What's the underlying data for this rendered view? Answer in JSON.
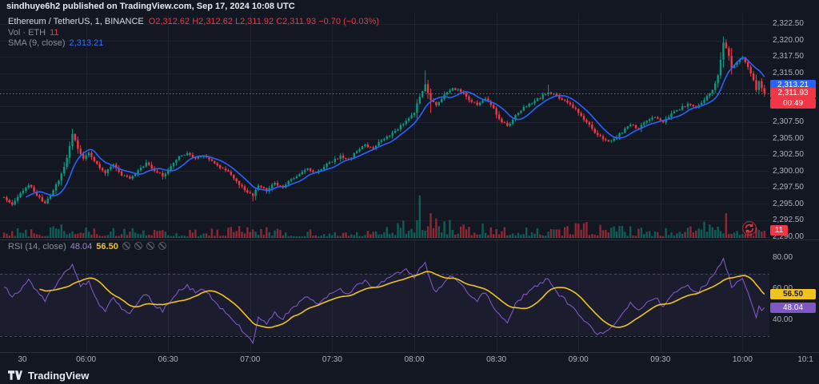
{
  "topbar": {
    "text": "sindhuye6h2 published on TradingView.com, Sep 17, 2024 10:08 UTC"
  },
  "legend": {
    "symbol": "Ethereum / TetherUS, 1, BINANCE",
    "ohlc": "O2,312.62  H2,312.62  L2,311.92  C2,311.93  −0.70 (−0.03%)",
    "vol_label": "Vol · ETH",
    "vol_value": "11",
    "sma_label": "SMA (9, close)",
    "sma_value": "2,313.21"
  },
  "rsi_legend": {
    "label": "RSI (14, close)",
    "value": "48.04",
    "ma_value": "56.50"
  },
  "badges": {
    "sma": "2,313.21",
    "last": "2,311.93",
    "countdown": "00:49",
    "volume": "11",
    "rsi_ma": "56.50",
    "rsi": "48.04"
  },
  "footer": {
    "brand": "TradingView"
  },
  "colors": {
    "background": "#131722",
    "grid": "#1e222d",
    "separator": "#2a2e39",
    "up": "#089981",
    "down": "#f23645",
    "sma": "#2962ff",
    "rsi": "#7e57c2",
    "rsi_ma": "#f0c41f",
    "axis_text": "#aeb1bb",
    "last_price_line": "#f23645"
  },
  "chart_data": {
    "type": "candlestick",
    "symbol": "Ethereum / TetherUS",
    "interval": "1",
    "exchange": "BINANCE",
    "time_range": {
      "start": "05:30",
      "end": "10:08"
    },
    "last": {
      "open": 2312.62,
      "high": 2312.62,
      "low": 2311.92,
      "close": 2311.93,
      "change": -0.7,
      "change_pct": -0.03,
      "volume_eth": 11
    },
    "sma9_last": 2313.21,
    "rsi_last": 48.04,
    "rsi_ma_last": 56.5,
    "axis_ranges": {
      "price": [
        2290.0,
        2322.5
      ],
      "rsi": [
        20,
        80
      ]
    },
    "levels": {
      "last_price_line": 2311.93,
      "rsi_overbought": 70,
      "rsi_oversold": 30
    },
    "price_ticks": [
      "2,322.50",
      "2,320.00",
      "2,317.50",
      "2,315.00",
      "2,312.50",
      "2,310.00",
      "2,307.50",
      "2,305.00",
      "2,302.50",
      "2,300.00",
      "2,297.50",
      "2,295.00",
      "2,292.50",
      "2,290.00"
    ],
    "rsi_ticks": [
      {
        "text": "80.00",
        "v": 80
      },
      {
        "text": "60.00",
        "v": 60
      },
      {
        "text": "40.00",
        "v": 40
      }
    ],
    "time_labels": [
      {
        "text": "30",
        "min": 0
      },
      {
        "text": "06:00",
        "min": 30
      },
      {
        "text": "06:30",
        "min": 60
      },
      {
        "text": "07:00",
        "min": 90
      },
      {
        "text": "07:30",
        "min": 120
      },
      {
        "text": "08:00",
        "min": 150
      },
      {
        "text": "08:30",
        "min": 180
      },
      {
        "text": "09:00",
        "min": 210
      },
      {
        "text": "09:30",
        "min": 240
      },
      {
        "text": "10:00",
        "min": 270
      },
      {
        "text": "10:1",
        "min": 293
      }
    ],
    "close_path": [
      [
        0,
        2296.0
      ],
      [
        3,
        2294.8
      ],
      [
        6,
        2296.5
      ],
      [
        9,
        2298.0
      ],
      [
        12,
        2296.2
      ],
      [
        15,
        2295.2
      ],
      [
        18,
        2297.0
      ],
      [
        21,
        2299.5
      ],
      [
        23,
        2302.0
      ],
      [
        25,
        2305.8
      ],
      [
        27,
        2303.5
      ],
      [
        29,
        2302.0
      ],
      [
        31,
        2303.0
      ],
      [
        34,
        2301.0
      ],
      [
        37,
        2299.8
      ],
      [
        40,
        2301.0
      ],
      [
        43,
        2299.5
      ],
      [
        46,
        2298.8
      ],
      [
        49,
        2300.0
      ],
      [
        52,
        2301.3
      ],
      [
        55,
        2300.2
      ],
      [
        58,
        2299.3
      ],
      [
        61,
        2300.8
      ],
      [
        64,
        2302.2
      ],
      [
        67,
        2302.8
      ],
      [
        70,
        2302.0
      ],
      [
        73,
        2302.5
      ],
      [
        76,
        2301.5
      ],
      [
        79,
        2300.5
      ],
      [
        82,
        2299.8
      ],
      [
        85,
        2298.5
      ],
      [
        88,
        2297.2
      ],
      [
        91,
        2296.2
      ],
      [
        93,
        2297.8
      ],
      [
        96,
        2297.0
      ],
      [
        99,
        2298.2
      ],
      [
        102,
        2297.5
      ],
      [
        105,
        2298.8
      ],
      [
        108,
        2299.5
      ],
      [
        111,
        2300.3
      ],
      [
        114,
        2299.8
      ],
      [
        117,
        2300.8
      ],
      [
        120,
        2301.5
      ],
      [
        123,
        2302.3
      ],
      [
        126,
        2301.8
      ],
      [
        129,
        2303.0
      ],
      [
        132,
        2304.0
      ],
      [
        135,
        2303.5
      ],
      [
        138,
        2304.8
      ],
      [
        141,
        2305.5
      ],
      [
        144,
        2306.5
      ],
      [
        147,
        2307.8
      ],
      [
        150,
        2309.0
      ],
      [
        152,
        2311.5
      ],
      [
        154,
        2313.2
      ],
      [
        156,
        2311.0
      ],
      [
        158,
        2310.0
      ],
      [
        160,
        2311.2
      ],
      [
        162,
        2312.0
      ],
      [
        164,
        2312.8
      ],
      [
        167,
        2312.2
      ],
      [
        170,
        2311.0
      ],
      [
        173,
        2310.2
      ],
      [
        176,
        2311.2
      ],
      [
        179,
        2309.5
      ],
      [
        181,
        2308.0
      ],
      [
        184,
        2306.9
      ],
      [
        187,
        2308.5
      ],
      [
        190,
        2309.8
      ],
      [
        193,
        2310.5
      ],
      [
        196,
        2311.2
      ],
      [
        199,
        2312.2
      ],
      [
        202,
        2311.5
      ],
      [
        205,
        2310.8
      ],
      [
        208,
        2309.8
      ],
      [
        211,
        2308.5
      ],
      [
        214,
        2307.0
      ],
      [
        217,
        2305.5
      ],
      [
        220,
        2304.6
      ],
      [
        223,
        2304.9
      ],
      [
        226,
        2306.0
      ],
      [
        229,
        2307.2
      ],
      [
        232,
        2306.5
      ],
      [
        235,
        2307.8
      ],
      [
        238,
        2308.2
      ],
      [
        241,
        2307.5
      ],
      [
        244,
        2308.8
      ],
      [
        247,
        2309.5
      ],
      [
        250,
        2310.3
      ],
      [
        253,
        2309.8
      ],
      [
        256,
        2311.0
      ],
      [
        259,
        2312.5
      ],
      [
        261,
        2314.5
      ],
      [
        262,
        2317.0
      ],
      [
        263,
        2319.8
      ],
      [
        265,
        2317.5
      ],
      [
        266,
        2315.8
      ],
      [
        268,
        2316.8
      ],
      [
        270,
        2317.3
      ],
      [
        272,
        2316.0
      ],
      [
        274,
        2313.8
      ],
      [
        275,
        2312.5
      ],
      [
        276,
        2313.8
      ],
      [
        277,
        2312.6
      ],
      [
        278,
        2311.93
      ]
    ],
    "spike_wicks": [
      {
        "t": 154,
        "high": 2315.4
      },
      {
        "t": 156,
        "low": 2308.9
      },
      {
        "t": 263,
        "high": 2320.6
      },
      {
        "t": 199,
        "high": 2313.2
      },
      {
        "t": 91,
        "low": 2295.4
      }
    ],
    "rsi_path": [
      [
        0,
        62
      ],
      [
        3,
        55
      ],
      [
        6,
        60
      ],
      [
        9,
        66
      ],
      [
        12,
        58
      ],
      [
        15,
        53
      ],
      [
        18,
        60
      ],
      [
        21,
        68
      ],
      [
        25,
        76
      ],
      [
        28,
        62
      ],
      [
        31,
        65
      ],
      [
        34,
        52
      ],
      [
        37,
        46
      ],
      [
        40,
        54
      ],
      [
        43,
        47
      ],
      [
        46,
        44
      ],
      [
        49,
        52
      ],
      [
        52,
        57
      ],
      [
        55,
        50
      ],
      [
        58,
        46
      ],
      [
        61,
        53
      ],
      [
        64,
        59
      ],
      [
        67,
        62
      ],
      [
        70,
        58
      ],
      [
        73,
        60
      ],
      [
        76,
        54
      ],
      [
        79,
        48
      ],
      [
        82,
        44
      ],
      [
        85,
        38
      ],
      [
        88,
        32
      ],
      [
        91,
        26
      ],
      [
        93,
        42
      ],
      [
        96,
        38
      ],
      [
        99,
        45
      ],
      [
        102,
        41
      ],
      [
        105,
        47
      ],
      [
        108,
        51
      ],
      [
        111,
        55
      ],
      [
        114,
        50
      ],
      [
        117,
        54
      ],
      [
        120,
        57
      ],
      [
        123,
        60
      ],
      [
        126,
        56
      ],
      [
        129,
        62
      ],
      [
        132,
        65
      ],
      [
        135,
        61
      ],
      [
        138,
        64
      ],
      [
        141,
        67
      ],
      [
        144,
        70
      ],
      [
        147,
        73
      ],
      [
        150,
        68
      ],
      [
        152,
        74
      ],
      [
        154,
        77
      ],
      [
        156,
        64
      ],
      [
        158,
        58
      ],
      [
        160,
        62
      ],
      [
        162,
        66
      ],
      [
        164,
        69
      ],
      [
        167,
        63
      ],
      [
        170,
        57
      ],
      [
        173,
        53
      ],
      [
        176,
        58
      ],
      [
        179,
        48
      ],
      [
        181,
        43
      ],
      [
        184,
        38
      ],
      [
        187,
        50
      ],
      [
        190,
        56
      ],
      [
        193,
        60
      ],
      [
        196,
        63
      ],
      [
        199,
        67
      ],
      [
        202,
        58
      ],
      [
        205,
        53
      ],
      [
        208,
        48
      ],
      [
        211,
        42
      ],
      [
        214,
        36
      ],
      [
        217,
        31
      ],
      [
        220,
        33
      ],
      [
        223,
        36
      ],
      [
        226,
        44
      ],
      [
        229,
        51
      ],
      [
        232,
        46
      ],
      [
        235,
        52
      ],
      [
        238,
        55
      ],
      [
        241,
        49
      ],
      [
        244,
        56
      ],
      [
        247,
        60
      ],
      [
        250,
        63
      ],
      [
        253,
        57
      ],
      [
        256,
        62
      ],
      [
        259,
        68
      ],
      [
        261,
        73
      ],
      [
        263,
        79
      ],
      [
        265,
        70
      ],
      [
        266,
        60
      ],
      [
        268,
        65
      ],
      [
        270,
        67
      ],
      [
        272,
        58
      ],
      [
        274,
        48
      ],
      [
        275,
        42
      ],
      [
        276,
        50
      ],
      [
        277,
        47
      ],
      [
        278,
        48.04
      ]
    ],
    "volume_profile": [
      [
        0,
        1.1
      ],
      [
        10,
        0.9
      ],
      [
        20,
        1.3
      ],
      [
        25,
        2.3
      ],
      [
        30,
        1.3
      ],
      [
        40,
        1.0
      ],
      [
        50,
        1.4
      ],
      [
        60,
        1.0
      ],
      [
        70,
        0.9
      ],
      [
        80,
        1.1
      ],
      [
        88,
        1.7
      ],
      [
        92,
        2.0
      ],
      [
        100,
        1.2
      ],
      [
        110,
        0.9
      ],
      [
        120,
        1.0
      ],
      [
        130,
        1.1
      ],
      [
        140,
        1.2
      ],
      [
        148,
        2.2
      ],
      [
        152,
        4.6
      ],
      [
        155,
        3.6
      ],
      [
        158,
        3.0
      ],
      [
        163,
        2.0
      ],
      [
        170,
        1.5
      ],
      [
        180,
        1.8
      ],
      [
        186,
        1.5
      ],
      [
        195,
        1.3
      ],
      [
        205,
        1.5
      ],
      [
        214,
        1.7
      ],
      [
        222,
        1.4
      ],
      [
        232,
        1.1
      ],
      [
        240,
        1.1
      ],
      [
        250,
        1.3
      ],
      [
        258,
        1.8
      ],
      [
        261,
        2.6
      ],
      [
        264,
        2.8
      ],
      [
        268,
        1.7
      ],
      [
        272,
        1.5
      ],
      [
        278,
        0.7
      ]
    ]
  }
}
